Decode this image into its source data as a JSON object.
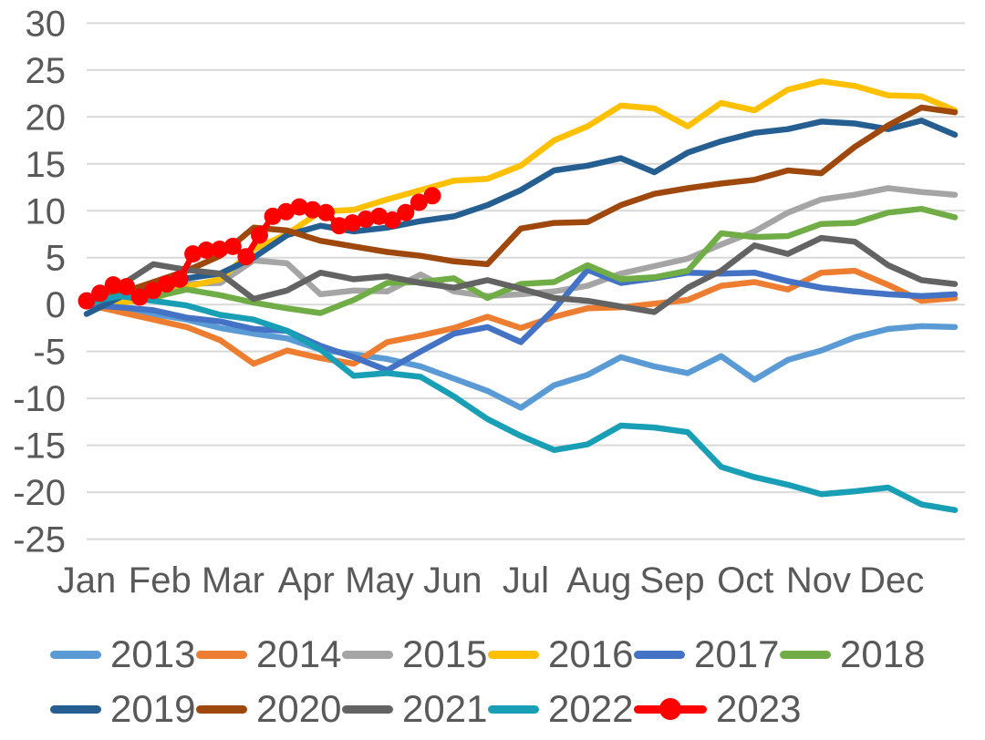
{
  "chart_data": {
    "type": "line",
    "title": "",
    "xlabel": "",
    "ylabel": "",
    "grid": true,
    "legend_position": "bottom",
    "x_axis": {
      "labels": [
        "Jan",
        "Feb",
        "Mar",
        "Apr",
        "May",
        "Jun",
        "Jul",
        "Aug",
        "Sep",
        "Oct",
        "Nov",
        "Dec"
      ]
    },
    "y_axis": {
      "min": -25,
      "max": 30,
      "tick_step": 5,
      "ticks": [
        30,
        25,
        20,
        15,
        10,
        5,
        0,
        -5,
        -10,
        -15,
        -20,
        -25
      ],
      "gridline_color": "#d9d9d9",
      "label_color": "#595959"
    },
    "series": [
      {
        "name": "2013",
        "color": "#5B9BD5",
        "span_weeks": 52,
        "marker": "none",
        "values": [
          0,
          -0.5,
          -1.0,
          -1.6,
          -2.5,
          -3.1,
          -3.6,
          -4.8,
          -5.3,
          -5.8,
          -6.6,
          -7.9,
          -9.2,
          -11.0,
          -8.6,
          -7.5,
          -5.6,
          -6.6,
          -7.3,
          -5.5,
          -8.0,
          -5.9,
          -4.9,
          -3.5,
          -2.6,
          -2.3,
          -2.4
        ]
      },
      {
        "name": "2014",
        "color": "#ED7D31",
        "span_weeks": 52,
        "marker": "none",
        "values": [
          0,
          -0.8,
          -1.6,
          -2.4,
          -3.8,
          -6.3,
          -4.9,
          -5.7,
          -6.3,
          -4.0,
          -3.3,
          -2.5,
          -1.3,
          -2.5,
          -1.3,
          -0.4,
          -0.3,
          0.1,
          0.5,
          2.0,
          2.4,
          1.6,
          3.4,
          3.6,
          2.1,
          0.4,
          0.7
        ]
      },
      {
        "name": "2015",
        "color": "#A5A5A5",
        "span_weeks": 52,
        "marker": "none",
        "values": [
          0,
          1.0,
          1.9,
          2.2,
          2.3,
          4.7,
          4.4,
          1.1,
          1.5,
          1.4,
          3.2,
          1.4,
          0.9,
          1.1,
          1.4,
          2.0,
          3.3,
          4.1,
          4.9,
          6.4,
          7.8,
          9.8,
          11.2,
          11.7,
          12.4,
          12.0,
          11.7
        ]
      },
      {
        "name": "2016",
        "color": "#FFC000",
        "span_weeks": 52,
        "marker": "none",
        "values": [
          0,
          0.2,
          0.6,
          1.9,
          2.7,
          5.9,
          7.5,
          9.9,
          10.1,
          11.2,
          12.2,
          13.2,
          13.4,
          14.8,
          17.5,
          19.0,
          21.2,
          20.9,
          19.0,
          21.5,
          20.7,
          22.9,
          23.8,
          23.3,
          22.3,
          22.2,
          20.7
        ]
      },
      {
        "name": "2017",
        "color": "#4472C4",
        "span_weeks": 52,
        "marker": "none",
        "values": [
          0,
          -0.3,
          -0.6,
          -1.4,
          -1.8,
          -2.6,
          -2.8,
          -4.4,
          -5.6,
          -7.0,
          -5.0,
          -3.1,
          -2.4,
          -4.0,
          -0.5,
          3.7,
          2.3,
          2.8,
          3.4,
          3.3,
          3.4,
          2.5,
          1.8,
          1.4,
          1.1,
          0.9,
          1.1
        ]
      },
      {
        "name": "2018",
        "color": "#70AD47",
        "span_weeks": 52,
        "marker": "none",
        "values": [
          0,
          1.2,
          0.8,
          1.6,
          1.0,
          0.2,
          -0.4,
          -0.9,
          0.5,
          2.3,
          2.4,
          2.8,
          0.7,
          2.2,
          2.4,
          4.2,
          2.7,
          2.9,
          3.6,
          7.6,
          7.2,
          7.3,
          8.6,
          8.7,
          9.8,
          10.2,
          9.3
        ]
      },
      {
        "name": "2019",
        "color": "#255E91",
        "span_weeks": 52,
        "marker": "none",
        "values": [
          -1.0,
          0.8,
          2.0,
          2.8,
          3.3,
          5.0,
          7.4,
          8.4,
          7.8,
          8.2,
          8.9,
          9.4,
          10.6,
          12.2,
          14.3,
          14.8,
          15.6,
          14.1,
          16.2,
          17.4,
          18.3,
          18.7,
          19.5,
          19.3,
          18.7,
          19.6,
          18.1
        ]
      },
      {
        "name": "2020",
        "color": "#9E480E",
        "span_weeks": 52,
        "marker": "none",
        "values": [
          0.3,
          1.2,
          2.4,
          3.6,
          5.2,
          8.2,
          7.9,
          6.8,
          6.2,
          5.6,
          5.2,
          4.6,
          4.3,
          8.1,
          8.7,
          8.8,
          10.6,
          11.8,
          12.4,
          12.9,
          13.3,
          14.3,
          14.0,
          16.8,
          19.1,
          21.0,
          20.5
        ]
      },
      {
        "name": "2021",
        "color": "#636363",
        "span_weeks": 52,
        "marker": "none",
        "values": [
          0.5,
          2.0,
          4.3,
          3.7,
          3.3,
          0.6,
          1.5,
          3.4,
          2.7,
          3.0,
          2.3,
          1.8,
          2.6,
          1.7,
          0.7,
          0.4,
          -0.2,
          -0.8,
          1.8,
          3.6,
          6.3,
          5.4,
          7.1,
          6.7,
          4.2,
          2.6,
          2.2
        ]
      },
      {
        "name": "2022",
        "color": "#189FB5",
        "span_weeks": 52,
        "marker": "none",
        "values": [
          0.2,
          0.9,
          0.4,
          -0.1,
          -1.1,
          -1.6,
          -2.8,
          -4.8,
          -7.6,
          -7.3,
          -7.7,
          -9.8,
          -12.2,
          -14.0,
          -15.5,
          -14.9,
          -12.9,
          -13.1,
          -13.6,
          -17.3,
          -18.4,
          -19.2,
          -20.2,
          -19.9,
          -19.5,
          -21.3,
          -21.9
        ]
      },
      {
        "name": "2023",
        "color": "#FF0000",
        "span_weeks": 20.7,
        "marker": "circle",
        "values": [
          0.4,
          1.2,
          2.1,
          1.9,
          0.8,
          1.5,
          2.2,
          2.7,
          5.4,
          5.8,
          5.9,
          6.2,
          5.1,
          7.4,
          9.4,
          9.9,
          10.4,
          10.1,
          9.8,
          8.4,
          8.7,
          9.1,
          9.4,
          9.0,
          9.8,
          10.9,
          11.6
        ]
      }
    ],
    "legend": {
      "rows": [
        [
          "2013",
          "2014",
          "2015",
          "2016",
          "2017",
          "2018"
        ],
        [
          "2019",
          "2020",
          "2021",
          "2022",
          "2023"
        ]
      ]
    }
  }
}
